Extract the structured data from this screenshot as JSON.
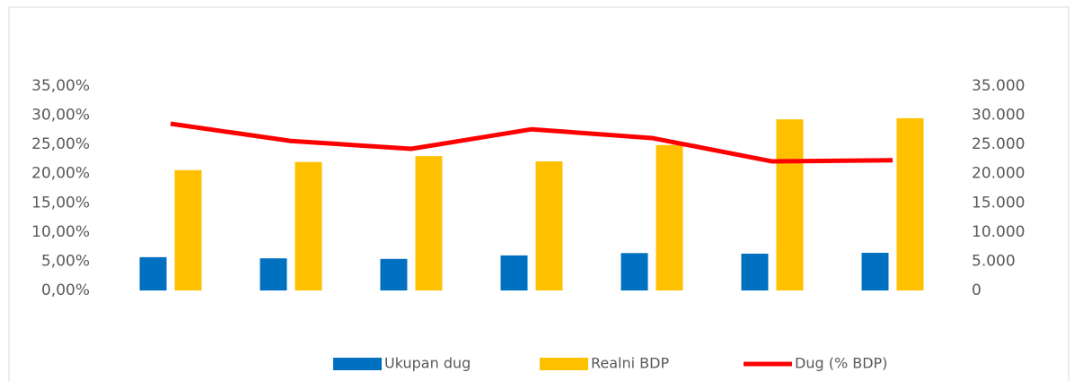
{
  "chart_data": {
    "type": "bar-line",
    "categories": [
      null,
      null,
      null,
      null,
      null,
      null,
      null
    ],
    "series": [
      {
        "name": "Ukupan dug",
        "color": "#0070c0",
        "type": "bar",
        "axis": "y2",
        "values": [
          5700,
          5500,
          5400,
          6000,
          6400,
          6300,
          6450
        ]
      },
      {
        "name": "Realni BDP",
        "color": "#ffc000",
        "type": "bar",
        "axis": "y2",
        "values": [
          20600,
          22000,
          23000,
          22100,
          24900,
          29300,
          29500
        ]
      },
      {
        "name": "Dug (% BDP)",
        "color": "#ff0000",
        "type": "line",
        "axis": "y",
        "values": [
          28.55,
          25.6,
          24.25,
          27.6,
          26.1,
          22.1,
          22.3
        ]
      }
    ],
    "ylim": [
      0,
      35
    ],
    "yticks": [
      {
        "value": 0,
        "label": "0,00%"
      },
      {
        "value": 5,
        "label": "5,00%"
      },
      {
        "value": 10,
        "label": "10,00%"
      },
      {
        "value": 15,
        "label": "15,00%"
      },
      {
        "value": 20,
        "label": "20,00%"
      },
      {
        "value": 25,
        "label": "25,00%"
      },
      {
        "value": 30,
        "label": "30,00%"
      },
      {
        "value": 35,
        "label": "35,00%"
      }
    ],
    "y2lim": [
      0,
      35000
    ],
    "y2ticks": [
      0,
      {
        "value": 5000,
        "label": "5.000"
      },
      {
        "value": 10000,
        "label": "10.000"
      },
      {
        "value": 15000,
        "label": "15.000"
      },
      {
        "value": 20000,
        "label": "20.000"
      },
      {
        "value": 25000,
        "label": "25.000"
      },
      {
        "value": 30000,
        "label": "30.000"
      },
      {
        "value": 35000,
        "label": "35.000"
      }
    ],
    "legend": "bottom"
  }
}
